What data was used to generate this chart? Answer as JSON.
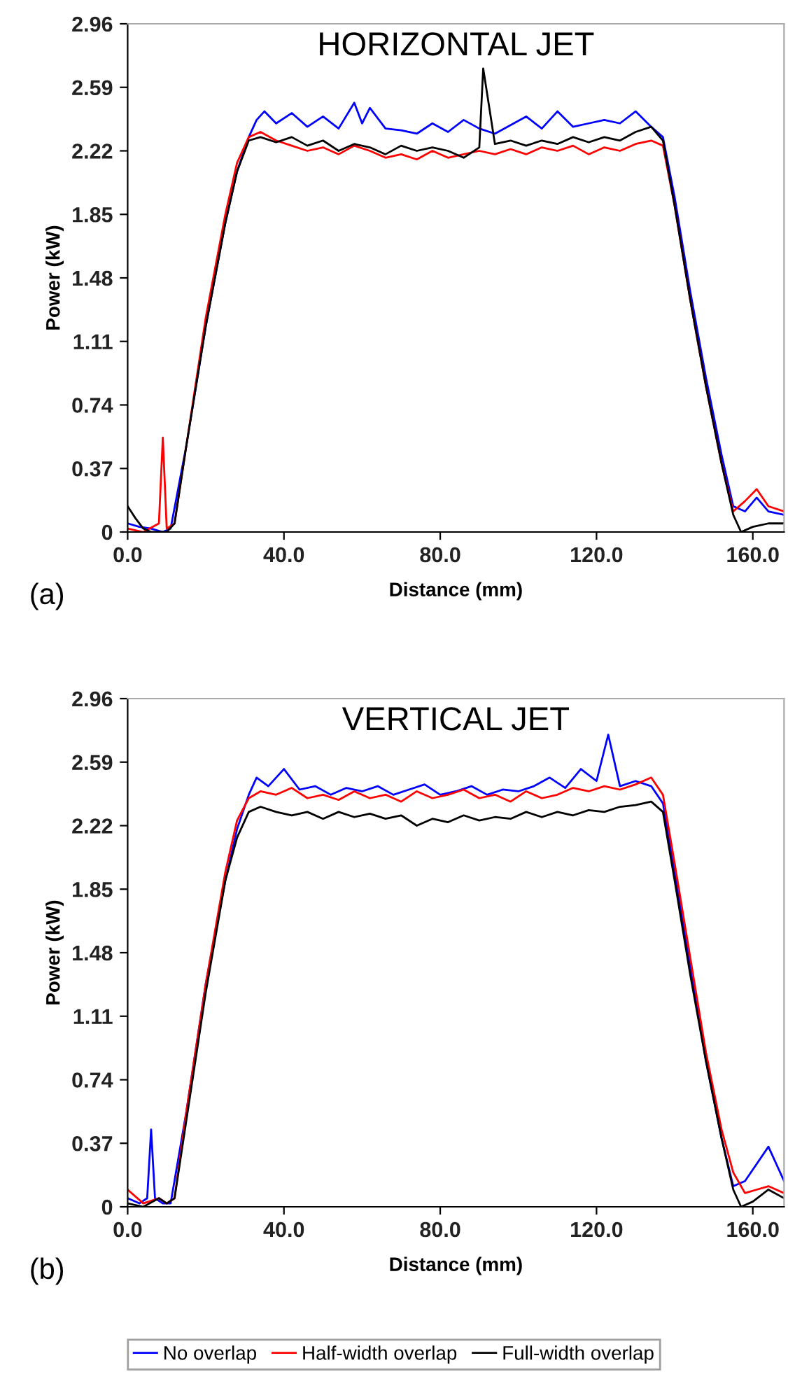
{
  "chart_data": [
    {
      "type": "line",
      "title": "HORIZONTAL JET",
      "xlabel": "Distance (mm)",
      "ylabel": "Power (kW)",
      "annotations": [
        "(a)"
      ],
      "xlim": [
        0,
        168
      ],
      "xticks": [
        {
          "value": 0,
          "label": "0.0"
        },
        {
          "value": 40,
          "label": "40.0"
        },
        {
          "value": 80,
          "label": "80.0"
        },
        {
          "value": 120,
          "label": "120.0"
        },
        {
          "value": 160,
          "label": "160.0"
        }
      ],
      "ylim": [
        0,
        2.96
      ],
      "yticks": [
        0,
        0.37,
        0.74,
        1.11,
        1.48,
        1.85,
        2.22,
        2.59,
        2.96
      ],
      "grid": false,
      "legend": false,
      "series": [
        {
          "color": "#0000ff",
          "x": [
            0,
            3,
            6,
            9,
            11,
            15,
            20,
            25,
            28,
            31,
            33,
            35,
            38,
            42,
            46,
            50,
            54,
            58,
            60,
            62,
            66,
            70,
            74,
            78,
            82,
            86,
            90,
            94,
            98,
            102,
            106,
            110,
            114,
            118,
            122,
            126,
            130,
            134,
            137,
            140,
            144,
            148,
            152,
            155,
            158,
            161,
            164,
            168
          ],
          "values": [
            0.05,
            0.03,
            0.02,
            0.0,
            0.02,
            0.5,
            1.2,
            1.8,
            2.1,
            2.3,
            2.4,
            2.45,
            2.38,
            2.44,
            2.36,
            2.42,
            2.35,
            2.5,
            2.38,
            2.47,
            2.35,
            2.34,
            2.32,
            2.38,
            2.33,
            2.4,
            2.35,
            2.32,
            2.37,
            2.42,
            2.35,
            2.45,
            2.36,
            2.38,
            2.4,
            2.38,
            2.45,
            2.36,
            2.3,
            1.95,
            1.4,
            0.9,
            0.45,
            0.15,
            0.12,
            0.2,
            0.12,
            0.1
          ]
        },
        {
          "color": "#ff0000",
          "x": [
            0,
            4,
            8,
            9,
            10,
            12,
            15,
            20,
            25,
            28,
            31,
            34,
            38,
            42,
            46,
            50,
            54,
            58,
            62,
            66,
            70,
            74,
            78,
            82,
            86,
            90,
            94,
            98,
            102,
            106,
            110,
            114,
            118,
            122,
            126,
            130,
            134,
            137,
            140,
            144,
            148,
            152,
            155,
            158,
            161,
            164,
            168
          ],
          "values": [
            0.02,
            0.0,
            0.05,
            0.55,
            0.02,
            0.05,
            0.5,
            1.25,
            1.85,
            2.15,
            2.3,
            2.33,
            2.28,
            2.25,
            2.22,
            2.24,
            2.2,
            2.25,
            2.22,
            2.18,
            2.2,
            2.17,
            2.22,
            2.18,
            2.2,
            2.22,
            2.2,
            2.23,
            2.2,
            2.24,
            2.22,
            2.25,
            2.2,
            2.24,
            2.22,
            2.26,
            2.28,
            2.25,
            1.9,
            1.35,
            0.85,
            0.4,
            0.12,
            0.18,
            0.25,
            0.15,
            0.12
          ]
        },
        {
          "color": "#000000",
          "x": [
            0,
            2,
            4,
            6,
            10,
            12,
            15,
            20,
            25,
            28,
            31,
            34,
            38,
            42,
            46,
            50,
            54,
            58,
            62,
            66,
            70,
            74,
            78,
            82,
            86,
            90,
            91,
            94,
            98,
            102,
            106,
            110,
            114,
            118,
            122,
            126,
            130,
            134,
            137,
            140,
            144,
            148,
            152,
            155,
            157,
            160,
            164,
            168
          ],
          "values": [
            0.15,
            0.08,
            0.02,
            0.0,
            0.0,
            0.05,
            0.5,
            1.2,
            1.8,
            2.1,
            2.28,
            2.3,
            2.27,
            2.3,
            2.25,
            2.28,
            2.22,
            2.26,
            2.24,
            2.2,
            2.25,
            2.22,
            2.24,
            2.22,
            2.18,
            2.24,
            2.7,
            2.26,
            2.28,
            2.25,
            2.28,
            2.26,
            2.3,
            2.27,
            2.3,
            2.28,
            2.33,
            2.36,
            2.28,
            1.9,
            1.35,
            0.85,
            0.4,
            0.1,
            0.0,
            0.03,
            0.05,
            0.05
          ]
        }
      ]
    },
    {
      "type": "line",
      "title": "VERTICAL JET",
      "xlabel": "Distance (mm)",
      "ylabel": "Power (kW)",
      "annotations": [
        "(b)"
      ],
      "xlim": [
        0,
        168
      ],
      "xticks": [
        {
          "value": 0,
          "label": "0.0"
        },
        {
          "value": 40,
          "label": "40.0"
        },
        {
          "value": 80,
          "label": "80.0"
        },
        {
          "value": 120,
          "label": "120.0"
        },
        {
          "value": 160,
          "label": "160.0"
        }
      ],
      "ylim": [
        0,
        2.96
      ],
      "yticks": [
        0,
        0.37,
        0.74,
        1.11,
        1.48,
        1.85,
        2.22,
        2.59,
        2.96
      ],
      "grid": false,
      "legend": "bottom",
      "series": [
        {
          "name": "No overlap",
          "color": "#0000ff",
          "x": [
            0,
            3,
            5,
            6,
            7,
            9,
            11,
            15,
            20,
            25,
            28,
            31,
            33,
            36,
            40,
            44,
            48,
            52,
            56,
            60,
            64,
            68,
            72,
            76,
            80,
            84,
            88,
            92,
            96,
            100,
            104,
            108,
            112,
            116,
            120,
            123,
            126,
            130,
            134,
            137,
            140,
            144,
            148,
            152,
            155,
            158,
            161,
            164,
            168
          ],
          "values": [
            0.05,
            0.02,
            0.05,
            0.45,
            0.05,
            0.02,
            0.02,
            0.55,
            1.3,
            1.9,
            2.2,
            2.4,
            2.5,
            2.45,
            2.55,
            2.43,
            2.45,
            2.4,
            2.44,
            2.42,
            2.45,
            2.4,
            2.43,
            2.46,
            2.4,
            2.42,
            2.45,
            2.4,
            2.43,
            2.42,
            2.45,
            2.5,
            2.44,
            2.55,
            2.48,
            2.75,
            2.45,
            2.48,
            2.45,
            2.35,
            1.95,
            1.4,
            0.85,
            0.4,
            0.12,
            0.15,
            0.25,
            0.35,
            0.15
          ]
        },
        {
          "name": "Half-width overlap",
          "color": "#ff0000",
          "x": [
            0,
            4,
            8,
            10,
            12,
            15,
            20,
            25,
            28,
            31,
            34,
            38,
            42,
            46,
            50,
            54,
            58,
            62,
            66,
            70,
            74,
            78,
            82,
            86,
            90,
            94,
            98,
            102,
            106,
            110,
            114,
            118,
            122,
            126,
            130,
            134,
            137,
            140,
            144,
            148,
            152,
            155,
            158,
            161,
            164,
            168
          ],
          "values": [
            0.1,
            0.02,
            0.05,
            0.02,
            0.05,
            0.55,
            1.3,
            1.95,
            2.25,
            2.38,
            2.42,
            2.4,
            2.44,
            2.38,
            2.4,
            2.37,
            2.42,
            2.38,
            2.4,
            2.36,
            2.42,
            2.38,
            2.4,
            2.43,
            2.38,
            2.4,
            2.36,
            2.42,
            2.38,
            2.4,
            2.44,
            2.42,
            2.45,
            2.43,
            2.46,
            2.5,
            2.4,
            2.0,
            1.45,
            0.9,
            0.45,
            0.2,
            0.08,
            0.1,
            0.12,
            0.08
          ]
        },
        {
          "name": "Full-width overlap",
          "color": "#000000",
          "x": [
            0,
            4,
            8,
            10,
            12,
            15,
            20,
            25,
            28,
            31,
            34,
            38,
            42,
            46,
            50,
            54,
            58,
            62,
            66,
            70,
            74,
            78,
            82,
            86,
            90,
            94,
            98,
            102,
            106,
            110,
            114,
            118,
            122,
            126,
            130,
            134,
            137,
            140,
            144,
            148,
            152,
            155,
            157,
            160,
            164,
            168
          ],
          "values": [
            0.02,
            0.0,
            0.05,
            0.02,
            0.05,
            0.5,
            1.25,
            1.9,
            2.15,
            2.3,
            2.33,
            2.3,
            2.28,
            2.3,
            2.26,
            2.3,
            2.27,
            2.29,
            2.26,
            2.28,
            2.22,
            2.26,
            2.24,
            2.28,
            2.25,
            2.27,
            2.26,
            2.3,
            2.27,
            2.3,
            2.28,
            2.31,
            2.3,
            2.33,
            2.34,
            2.36,
            2.3,
            1.9,
            1.35,
            0.85,
            0.4,
            0.1,
            0.0,
            0.03,
            0.1,
            0.05
          ]
        }
      ]
    }
  ]
}
